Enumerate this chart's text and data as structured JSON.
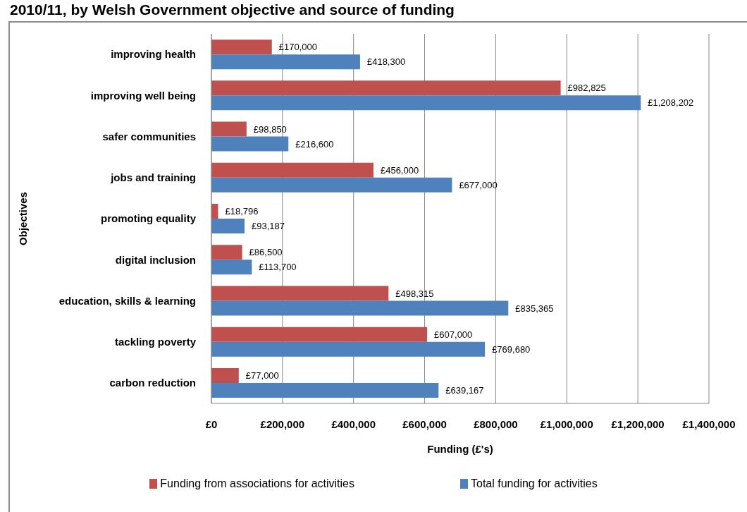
{
  "chart_data": {
    "type": "bar",
    "orientation": "horizontal",
    "title": "2010/11, by Welsh Government objective and source of funding",
    "xlabel": "Funding (£'s)",
    "ylabel": "Objectives",
    "categories": [
      "improving health",
      "improving well being",
      "safer communities",
      "jobs and training",
      "promoting equality",
      "digital inclusion",
      "education, skills & learning",
      "tackling  poverty",
      "carbon reduction"
    ],
    "series": [
      {
        "name": "Funding from associations for activities",
        "color": "#c0504d",
        "values": [
          170000,
          982825,
          98850,
          456000,
          18796,
          86500,
          498315,
          607000,
          77000
        ],
        "value_labels": [
          "£170,000",
          "£982,825",
          "£98,850",
          "£456,000",
          "£18,796",
          "£86,500",
          "£498,315",
          "£607,000",
          "£77,000"
        ]
      },
      {
        "name": "Total funding for activities",
        "color": "#4f81bd",
        "values": [
          418300,
          1208202,
          216600,
          677000,
          93187,
          113700,
          835365,
          769680,
          639167
        ],
        "value_labels": [
          "£418,300",
          "£1,208,202",
          "£216,600",
          "£677,000",
          "£93,187",
          "£113,700",
          "£835,365",
          "£769,680",
          "£639,167"
        ]
      }
    ],
    "xlim": [
      0,
      1400000
    ],
    "xticks": [
      {
        "value": 0,
        "label": "£0"
      },
      {
        "value": 200000,
        "label": "£200,000"
      },
      {
        "value": 400000,
        "label": "£400,000"
      },
      {
        "value": 600000,
        "label": "£600,000"
      },
      {
        "value": 800000,
        "label": "£800,000"
      },
      {
        "value": 1000000,
        "label": "£1,000,000"
      },
      {
        "value": 1200000,
        "label": "£1,200,000"
      },
      {
        "value": 1400000,
        "label": "£1,400,000"
      }
    ],
    "grid": "x",
    "legend": "bottom"
  }
}
